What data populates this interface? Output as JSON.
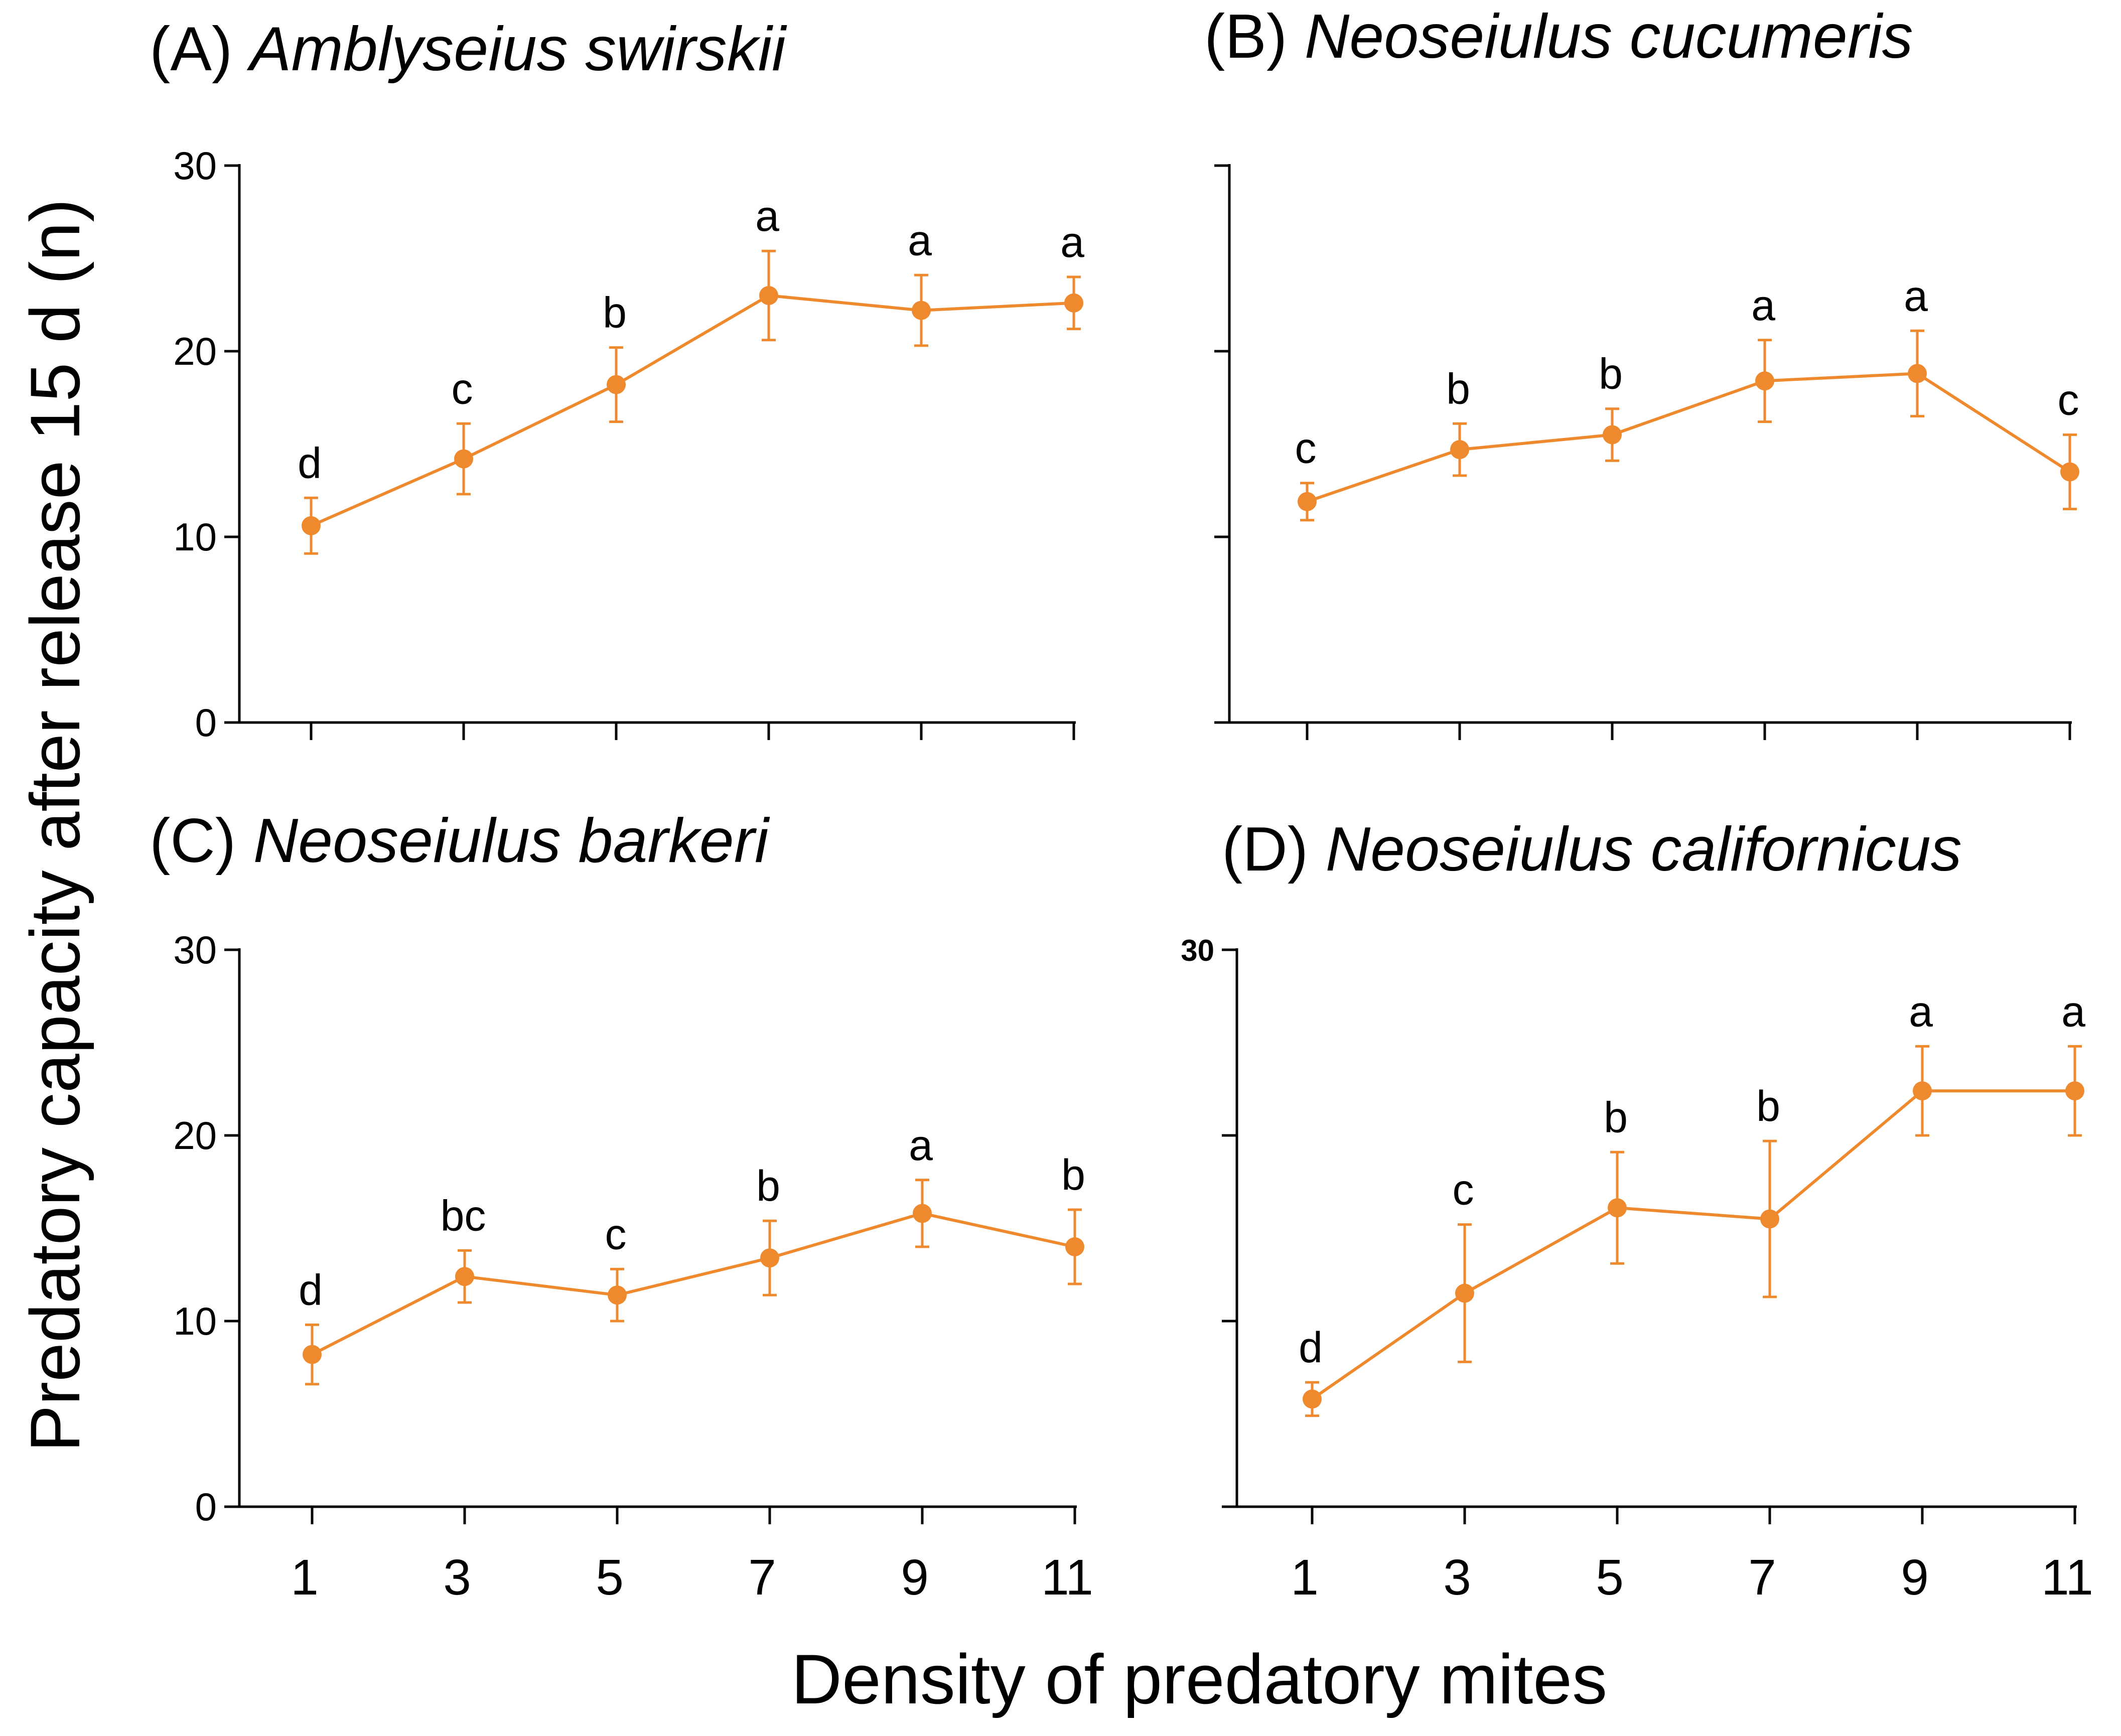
{
  "figure": {
    "ylabel": "Predatory capacity after release 15 d (n)",
    "xlabel": "Density of predatory mites",
    "series_color": "#ee8a2d"
  },
  "chart_data": [
    {
      "type": "line",
      "panel": "A",
      "title_prefix": "(A) ",
      "title_species": "Amblyseius swirskii",
      "x": [
        1,
        3,
        5,
        7,
        9,
        11
      ],
      "values": [
        10.6,
        14.2,
        18.2,
        23.0,
        22.2,
        22.6
      ],
      "error": [
        1.5,
        1.9,
        2.0,
        2.4,
        1.9,
        1.4
      ],
      "letters": [
        "d",
        "c",
        "b",
        "a",
        "a",
        "a"
      ],
      "ylim": [
        0,
        30
      ],
      "yticks": [
        0,
        10,
        20,
        30
      ],
      "ytick_labels": [
        "0",
        "10",
        "20",
        "30"
      ],
      "xticks": [
        1,
        3,
        5,
        7,
        9,
        11
      ],
      "xtick_labels": []
    },
    {
      "type": "line",
      "panel": "B",
      "title_prefix": "(B) ",
      "title_species": "Neoseiulus cucumeris",
      "x": [
        1,
        3,
        5,
        7,
        9,
        11
      ],
      "values": [
        11.9,
        14.7,
        15.5,
        18.4,
        18.8,
        13.5
      ],
      "error": [
        1.0,
        1.4,
        1.4,
        2.2,
        2.3,
        2.0
      ],
      "letters": [
        "c",
        "b",
        "b",
        "a",
        "a",
        "c"
      ],
      "ylim": [
        0,
        30
      ],
      "yticks": [
        0,
        10,
        20,
        30
      ],
      "ytick_labels": [],
      "xticks": [
        1,
        3,
        5,
        7,
        9,
        11
      ],
      "xtick_labels": []
    },
    {
      "type": "line",
      "panel": "C",
      "title_prefix": "(C) ",
      "title_species": "Neoseiulus barkeri",
      "x": [
        1,
        3,
        5,
        7,
        9,
        11
      ],
      "values": [
        8.2,
        12.4,
        11.4,
        13.4,
        15.8,
        14.0
      ],
      "error": [
        1.6,
        1.4,
        1.4,
        2.0,
        1.8,
        2.0
      ],
      "letters": [
        "d",
        "bc",
        "c",
        "b",
        "a",
        "b"
      ],
      "ylim": [
        0,
        30
      ],
      "yticks": [
        0,
        10,
        20,
        30
      ],
      "ytick_labels": [
        "0",
        "10",
        "20",
        "30"
      ],
      "xticks": [
        1,
        3,
        5,
        7,
        9,
        11
      ],
      "xtick_labels": [
        "1",
        "3",
        "5",
        "7",
        "9",
        "11"
      ]
    },
    {
      "type": "line",
      "panel": "D",
      "title_prefix": "(D) ",
      "title_species": "Neoseiulus californicus",
      "x": [
        1,
        3,
        5,
        7,
        9,
        11
      ],
      "values": [
        5.8,
        11.5,
        16.1,
        15.5,
        22.4,
        22.4
      ],
      "error": [
        0.9,
        3.7,
        3.0,
        4.2,
        2.4,
        2.4
      ],
      "letters": [
        "d",
        "c",
        "b",
        "b",
        "a",
        "a"
      ],
      "ylim": [
        0,
        30
      ],
      "yticks": [
        0,
        10,
        20,
        30
      ],
      "ytick_labels": [
        "",
        "",
        "",
        "30"
      ],
      "bold_ticks": true,
      "xticks": [
        1,
        3,
        5,
        7,
        9,
        11
      ],
      "xtick_labels": [
        "1",
        "3",
        "5",
        "7",
        "9",
        "11"
      ]
    }
  ]
}
